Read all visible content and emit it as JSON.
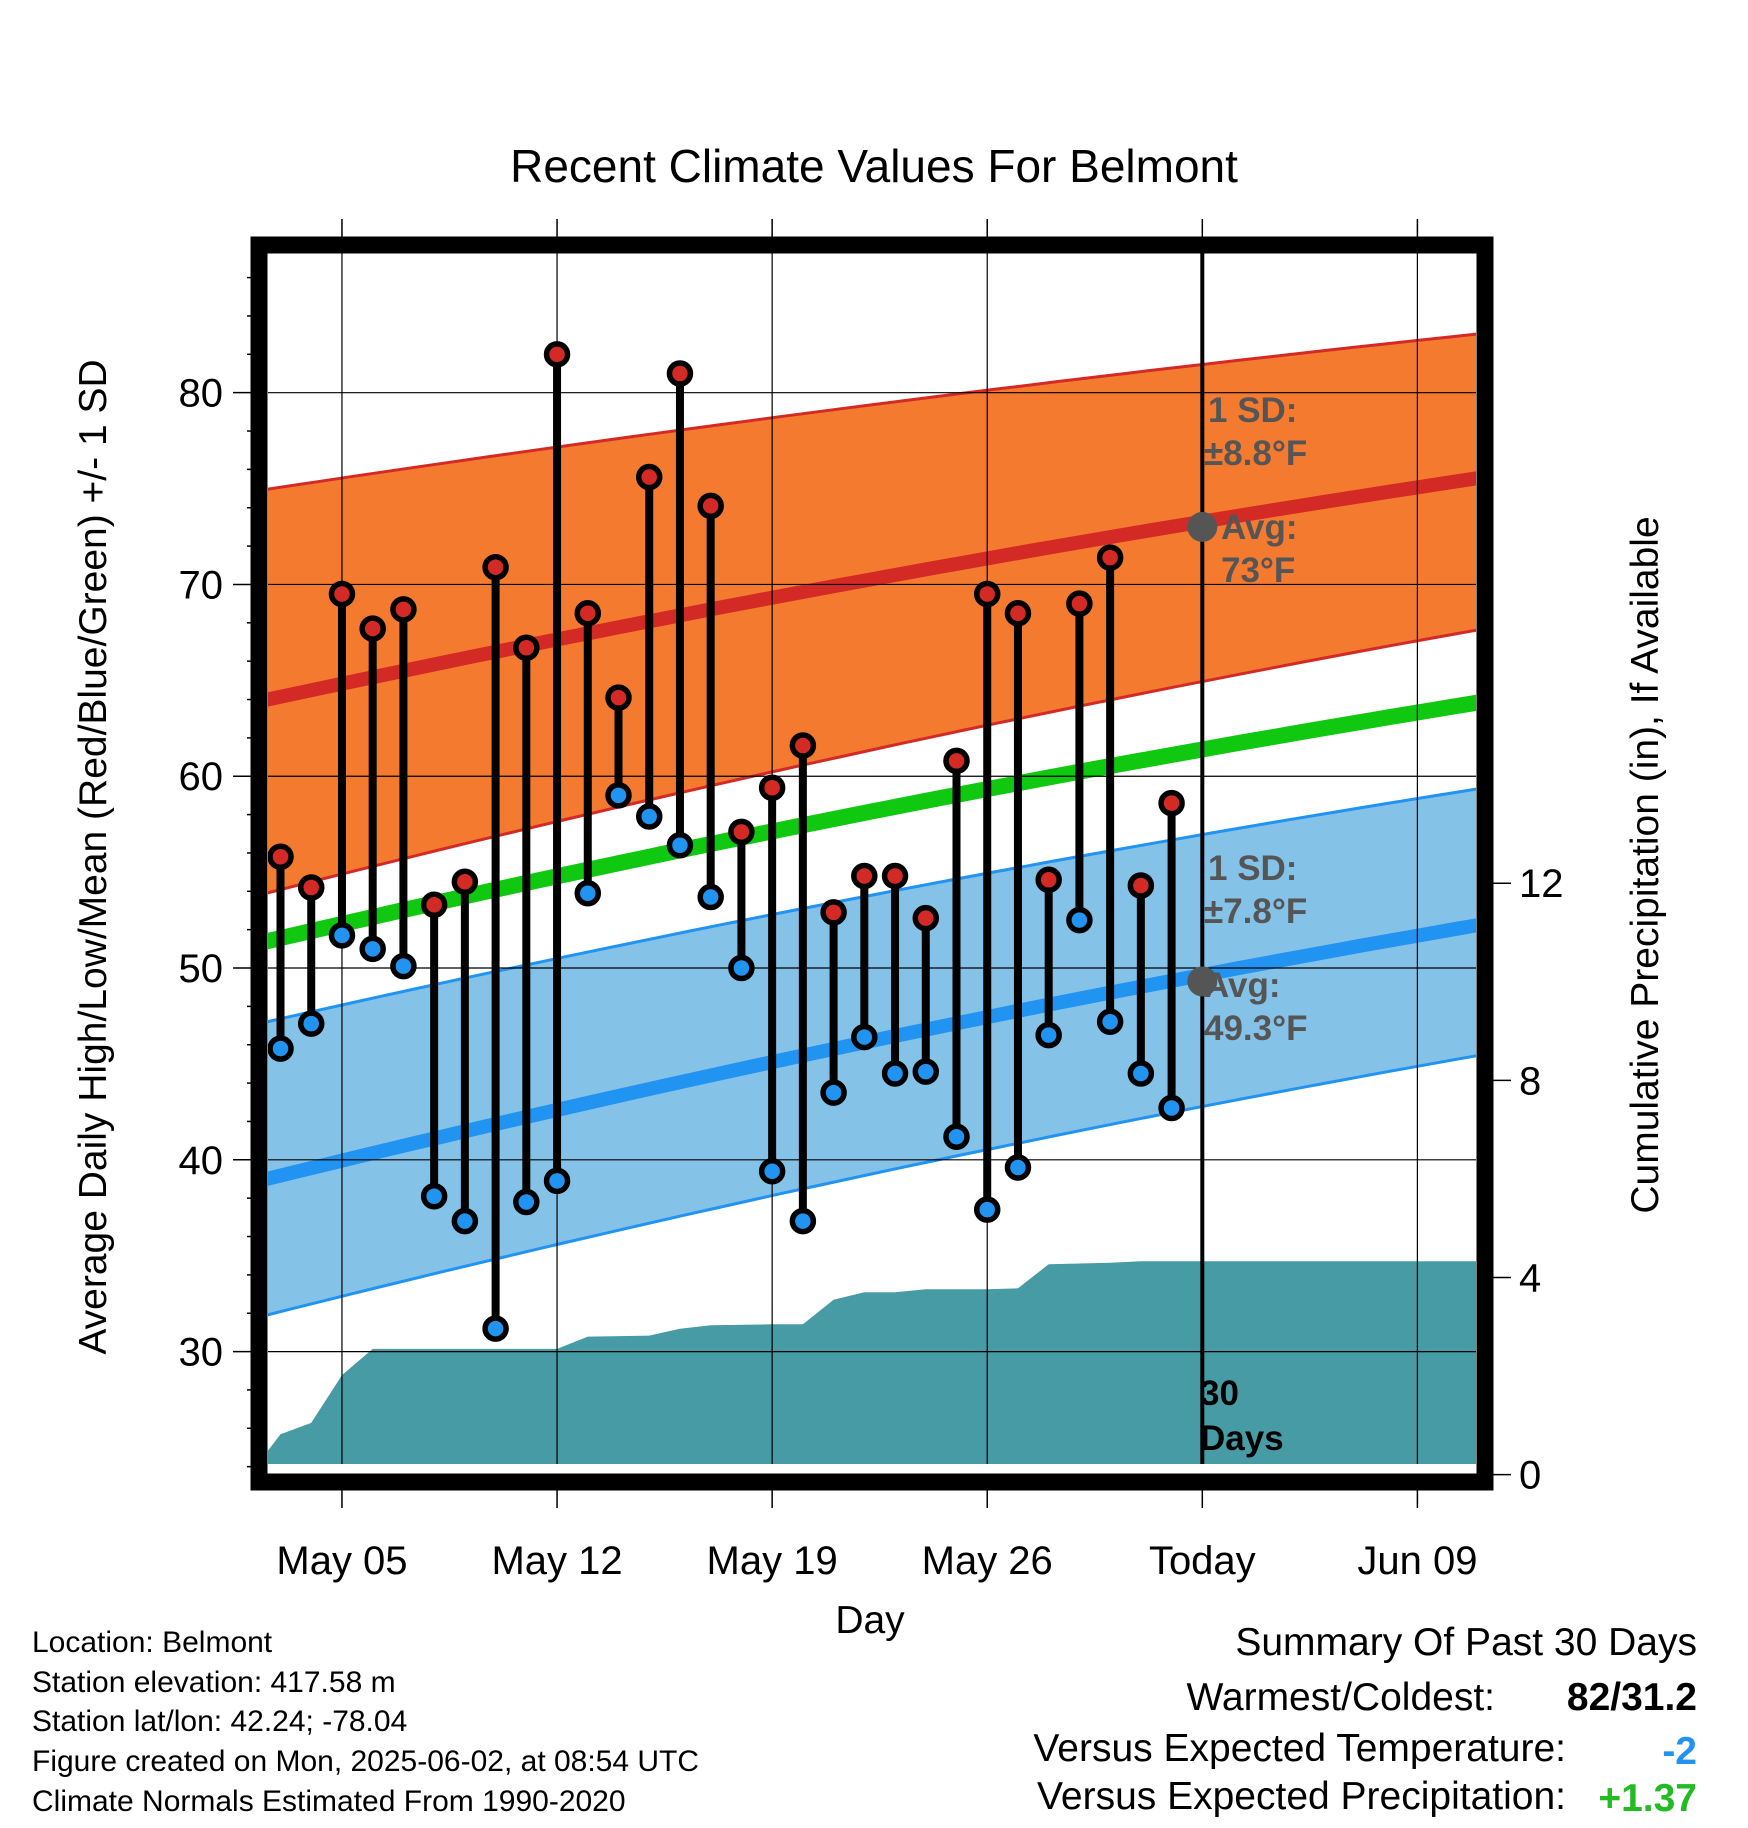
{
  "chart_data": {
    "type": "line",
    "title": "Recent Climate Values For Belmont",
    "xlabel": "Day",
    "ylabel_left": "Average Daily High/Low/Mean (Red/Blue/Green) +/- 1 SD",
    "ylabel_right": "Cumulative Precipitation (in), If Available",
    "ylim_left": [
      23.2,
      87.7
    ],
    "ylim_right": [
      -0.15,
      24.95
    ],
    "yticks_left": [
      30,
      40,
      50,
      60,
      70,
      80
    ],
    "yticks_right": [
      0,
      4,
      8,
      12
    ],
    "xlim_days": [
      1.3,
      12.2
    ],
    "x_tick_labels": [
      "May 05",
      "May 12",
      "May 19",
      "May 26",
      "Today",
      "Jun 09"
    ],
    "grid": true,
    "days": [
      "2025-05-03",
      "2025-05-04",
      "2025-05-05",
      "2025-05-06",
      "2025-05-07",
      "2025-05-08",
      "2025-05-09",
      "2025-05-10",
      "2025-05-11",
      "2025-05-12",
      "2025-05-13",
      "2025-05-14",
      "2025-05-15",
      "2025-05-16",
      "2025-05-17",
      "2025-05-18",
      "2025-05-19",
      "2025-05-20",
      "2025-05-21",
      "2025-05-22",
      "2025-05-23",
      "2025-05-24",
      "2025-05-25",
      "2025-05-26",
      "2025-05-27",
      "2025-05-28",
      "2025-05-29",
      "2025-05-30",
      "2025-05-31",
      "2025-06-01"
    ],
    "daily_high": [
      55.8,
      54.2,
      69.5,
      67.7,
      68.7,
      53.3,
      54.5,
      70.9,
      66.7,
      82.0,
      68.5,
      64.1,
      75.6,
      81.0,
      74.1,
      57.1,
      59.4,
      61.6,
      52.9,
      54.8,
      54.8,
      52.6,
      60.8,
      69.5,
      68.5,
      54.6,
      69.0,
      71.4,
      54.3,
      58.6
    ],
    "daily_low": [
      45.8,
      47.1,
      51.7,
      51.0,
      50.1,
      38.1,
      36.8,
      31.2,
      37.8,
      38.9,
      53.9,
      59.0,
      57.9,
      56.4,
      53.7,
      50.0,
      39.4,
      36.8,
      43.5,
      46.4,
      44.5,
      44.6,
      41.2,
      37.4,
      39.6,
      46.5,
      52.5,
      47.2,
      44.5,
      42.7
    ],
    "normal_high_avg": {
      "start": 63.9,
      "today": 73.0,
      "end": 75.6
    },
    "normal_high_sd_band": {
      "upper_start": 74.9,
      "upper_end": 83.1,
      "lower_start": 53.8,
      "lower_end": 67.7
    },
    "normal_mean": {
      "start": 51.3,
      "end": 63.9
    },
    "normal_low_avg": {
      "start": 38.9,
      "today": 49.3,
      "end": 52.3
    },
    "normal_low_sd_band": {
      "upper_start": 47.1,
      "upper_end": 59.4,
      "lower_start": 31.8,
      "lower_end": 45.5
    },
    "cumulative_precip": {
      "dates": [
        "2025-05-02",
        "2025-05-03",
        "2025-05-04",
        "2025-05-05",
        "2025-05-06",
        "2025-05-07",
        "2025-05-12",
        "2025-05-13",
        "2025-05-15",
        "2025-05-16",
        "2025-05-17",
        "2025-05-19",
        "2025-05-20",
        "2025-05-21",
        "2025-05-22",
        "2025-05-23",
        "2025-05-24",
        "2025-05-26",
        "2025-05-27",
        "2025-05-28",
        "2025-05-30",
        "2025-05-31",
        "2025-06-11"
      ],
      "values": [
        0.0,
        0.82,
        1.05,
        2.02,
        2.55,
        2.55,
        2.55,
        2.8,
        2.82,
        2.96,
        3.03,
        3.05,
        3.05,
        3.55,
        3.7,
        3.7,
        3.76,
        3.76,
        3.78,
        4.27,
        4.3,
        4.33,
        4.33
      ]
    }
  },
  "annotations": {
    "high_sd_title": "1 SD:",
    "high_sd_value": "±8.8°F",
    "high_avg_title": "Avg:",
    "high_avg_value": "73°F",
    "low_sd_title": "1 SD:",
    "low_sd_value": "±7.8°F",
    "low_avg_title": "Avg:",
    "low_avg_value": "49.3°F",
    "days_number": "30",
    "days_word": "Days"
  },
  "footer_left": {
    "location": "Location: Belmont",
    "elevation": "Station elevation: 417.58 m",
    "latlon": "Station lat/lon: 42.24; -78.04",
    "created": "Figure created on Mon, 2025-06-02, at 08:54 UTC",
    "normals": "Climate Normals Estimated From 1990-2020"
  },
  "footer_right": {
    "title": "Summary Of Past 30 Days",
    "warmest_label": "Warmest/Coldest:",
    "warmest_value": "82/31.2",
    "temp_label": "Versus Expected Temperature:",
    "temp_value": "-2",
    "precip_label": "Versus Expected Precipitation:",
    "precip_value": "+1.37"
  },
  "colors": {
    "high_band": "#f47a2f",
    "high_line": "#d42a26",
    "mean_line": "#10c810",
    "low_band": "#85c2e8",
    "low_line": "#2193f0",
    "precip_fill": "#479ba5",
    "annotation_text": "#555555",
    "high_dot": "#d42a26",
    "low_dot": "#2193f0",
    "today_marker": "#555555",
    "temp_value_color": "#2193f0",
    "precip_value_color": "#22bb22"
  }
}
